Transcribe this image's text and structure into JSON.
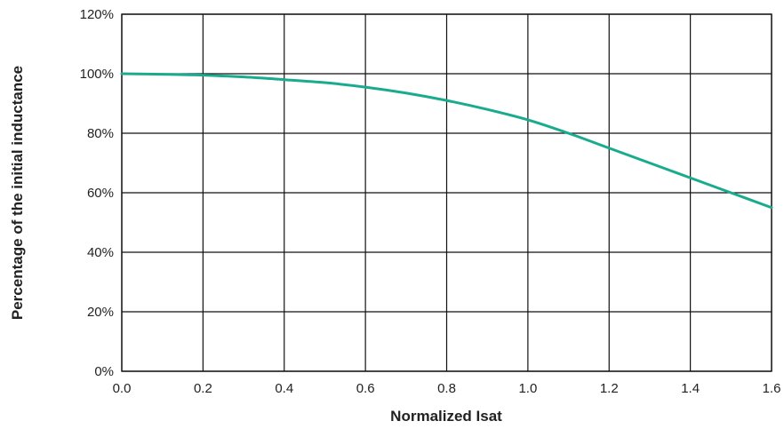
{
  "chart_data": {
    "type": "line",
    "title": "",
    "xlabel": "Normalized Isat",
    "ylabel": "Percentage of the initial inductance",
    "xlim": [
      0,
      1.6
    ],
    "ylim": [
      0,
      120
    ],
    "grid": true,
    "x_ticks": [
      "0.0",
      "0.2",
      "0.4",
      "0.6",
      "0.8",
      "1.0",
      "1.2",
      "1.4",
      "1.6"
    ],
    "y_ticks": [
      "0%",
      "20%",
      "40%",
      "60%",
      "80%",
      "100%",
      "120%"
    ],
    "series": [
      {
        "color": "#1aab8e",
        "x": [
          0.0,
          0.1,
          0.2,
          0.3,
          0.4,
          0.5,
          0.6,
          0.7,
          0.8,
          0.9,
          1.0,
          1.1,
          1.2,
          1.3,
          1.4,
          1.5,
          1.6
        ],
        "y": [
          100,
          99.8,
          99.5,
          98.9,
          98,
          97,
          95.5,
          93.5,
          91,
          88,
          84.5,
          80,
          75,
          70,
          65,
          60,
          55
        ]
      }
    ]
  }
}
